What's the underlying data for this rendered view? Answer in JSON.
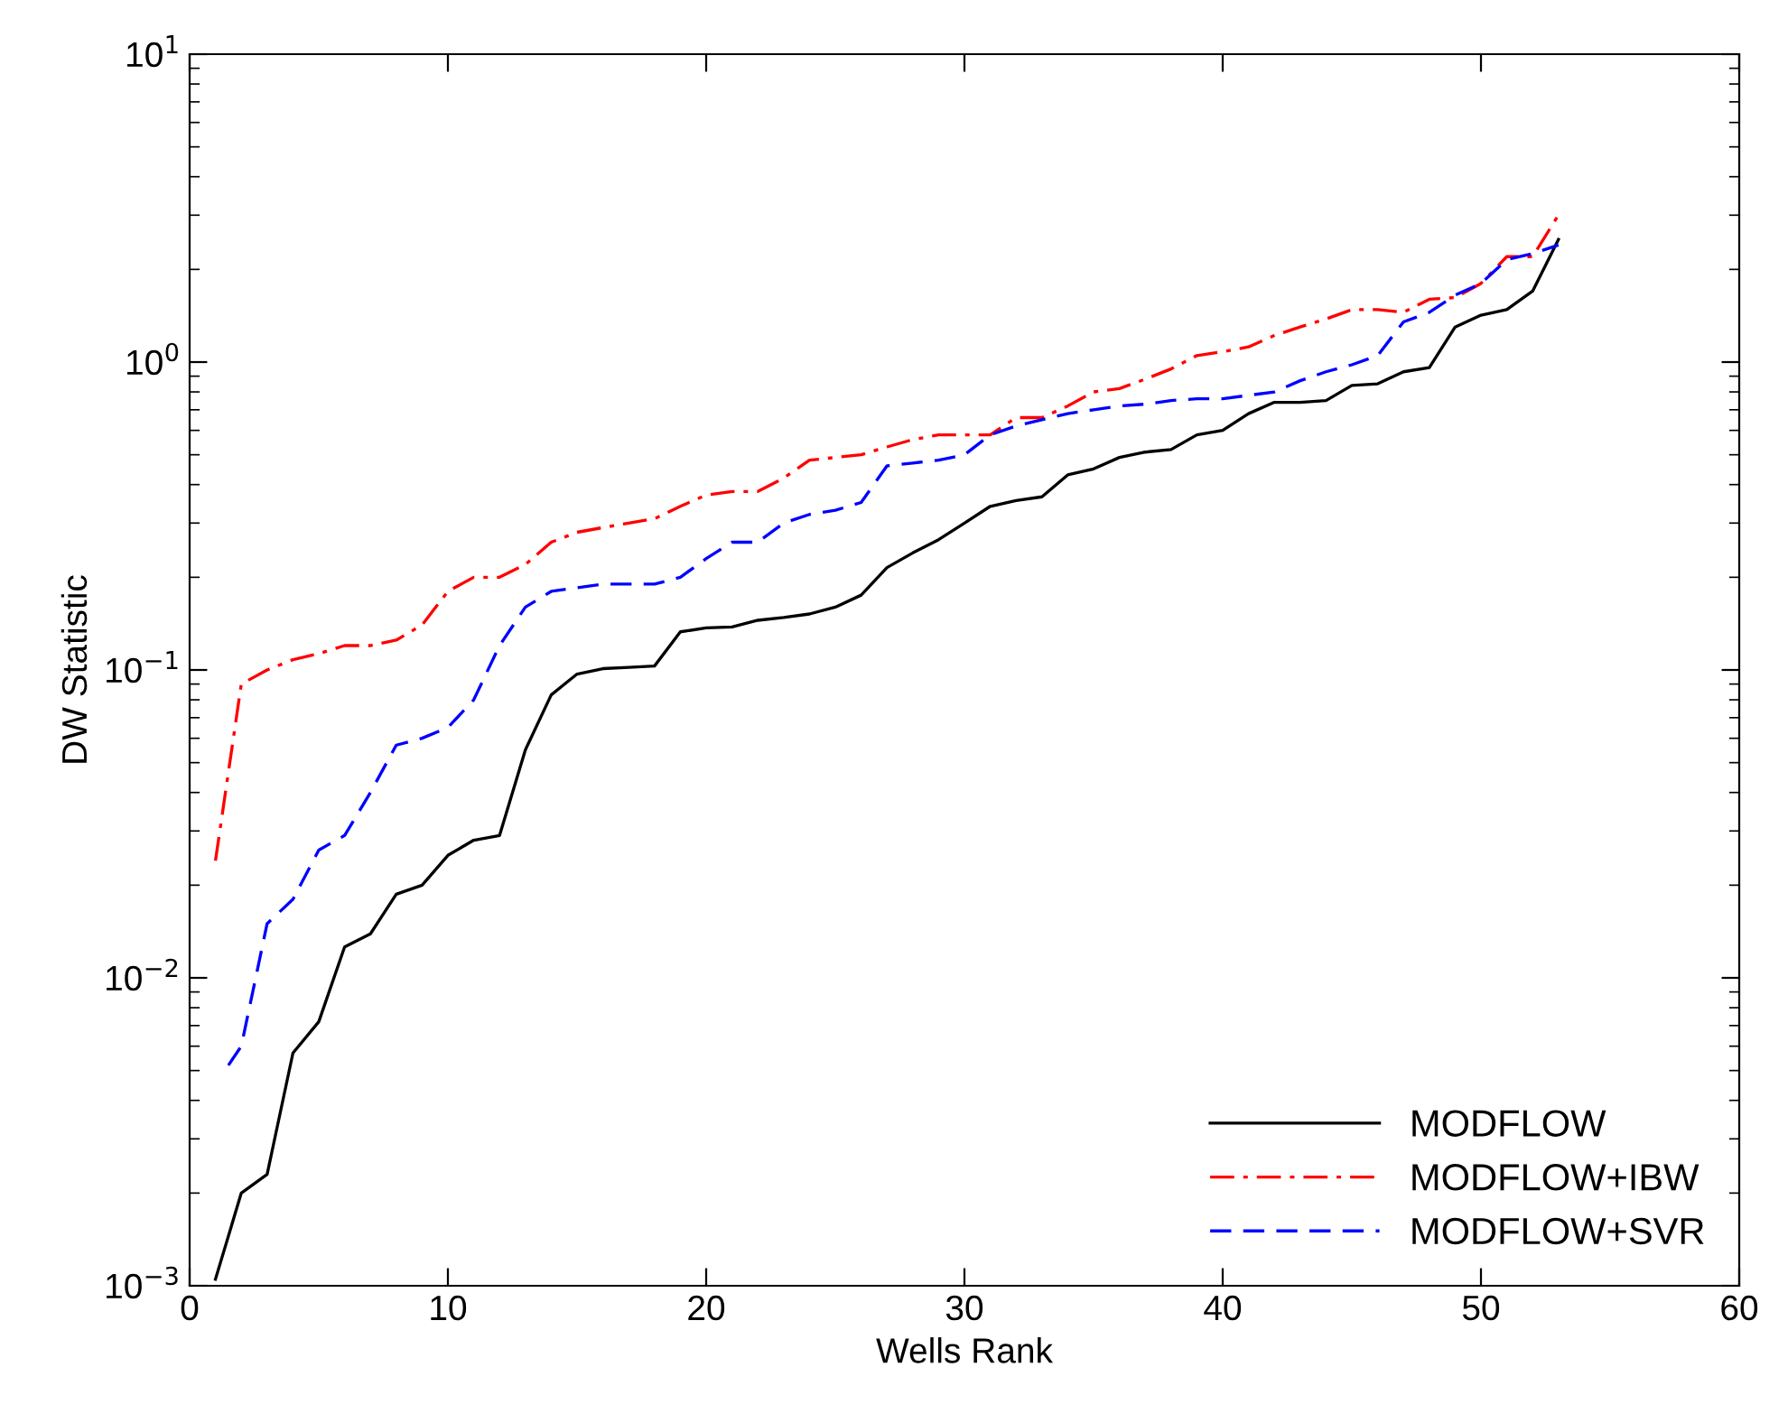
{
  "chart_data": {
    "type": "line",
    "xlabel": "Wells Rank",
    "ylabel": "DW Statistic",
    "log": "y",
    "xlim": [
      0,
      60
    ],
    "xticks": [
      0,
      10,
      20,
      30,
      40,
      50,
      60
    ],
    "ylim": [
      0.001,
      10
    ],
    "yticks": [
      {
        "value": 0.001,
        "label": "10$^{−3}$"
      },
      {
        "value": 0.01,
        "label": "10$^{−2}$"
      },
      {
        "value": 0.1,
        "label": "10$^{−1}$"
      },
      {
        "value": 1,
        "label": "10$^{0}$"
      },
      {
        "value": 10,
        "label": "10$^{1}$"
      }
    ],
    "grid": false,
    "legend": "bottom right",
    "x": [
      1,
      2,
      3,
      4,
      5,
      6,
      7,
      8,
      9,
      10,
      11,
      12,
      13,
      14,
      15,
      16,
      17,
      18,
      19,
      20,
      21,
      22,
      23,
      24,
      25,
      26,
      27,
      28,
      29,
      30,
      31,
      32,
      33,
      34,
      35,
      36,
      37,
      38,
      39,
      40,
      41,
      42,
      43,
      44,
      45,
      46,
      47,
      48,
      49,
      50,
      51,
      52,
      53
    ],
    "series": [
      {
        "name": "MODFLOW",
        "color": "#000000",
        "line_style": "solid",
        "values": [
          0.00105,
          0.002,
          0.0023,
          0.0057,
          0.0072,
          0.0126,
          0.0139,
          0.0187,
          0.02,
          0.025,
          0.028,
          0.029,
          0.055,
          0.083,
          0.097,
          0.101,
          0.102,
          0.103,
          0.133,
          0.137,
          0.138,
          0.145,
          0.148,
          0.152,
          0.16,
          0.175,
          0.215,
          0.24,
          0.265,
          0.3,
          0.34,
          0.355,
          0.365,
          0.43,
          0.45,
          0.49,
          0.51,
          0.52,
          0.58,
          0.6,
          0.68,
          0.74,
          0.74,
          0.75,
          0.84,
          0.85,
          0.93,
          0.96,
          1.3,
          1.42,
          1.48,
          1.7,
          2.5
        ]
      },
      {
        "name": "MODFLOW+IBW",
        "color": "#ff0000",
        "line_style": "dashdot",
        "values": [
          0.024,
          0.09,
          0.1,
          0.108,
          0.113,
          0.12,
          0.12,
          0.125,
          0.14,
          0.18,
          0.2,
          0.2,
          0.22,
          0.26,
          0.28,
          0.29,
          0.3,
          0.31,
          0.34,
          0.37,
          0.38,
          0.38,
          0.42,
          0.48,
          0.49,
          0.5,
          0.53,
          0.56,
          0.58,
          0.58,
          0.58,
          0.66,
          0.66,
          0.72,
          0.8,
          0.82,
          0.88,
          0.95,
          1.05,
          1.08,
          1.12,
          1.22,
          1.3,
          1.38,
          1.48,
          1.48,
          1.45,
          1.6,
          1.62,
          1.8,
          2.2,
          2.2,
          3.0
        ]
      },
      {
        "name": "MODFLOW+SVR",
        "color": "#0000ff",
        "line_style": "dashed",
        "x": [
          1.5,
          2,
          3,
          4,
          5,
          6,
          7,
          8,
          9,
          10,
          11,
          12,
          13,
          14,
          15,
          16,
          17,
          18,
          19,
          20,
          21,
          22,
          23,
          24,
          25,
          26,
          27,
          28,
          29,
          30,
          31,
          32,
          33,
          34,
          35,
          36,
          37,
          38,
          39,
          40,
          41,
          42,
          43,
          44,
          45,
          46,
          47,
          48,
          49,
          50,
          51,
          52,
          53
        ],
        "values": [
          0.0052,
          0.006,
          0.015,
          0.018,
          0.026,
          0.029,
          0.04,
          0.057,
          0.06,
          0.065,
          0.08,
          0.12,
          0.16,
          0.18,
          0.185,
          0.19,
          0.19,
          0.19,
          0.2,
          0.23,
          0.26,
          0.26,
          0.3,
          0.32,
          0.33,
          0.35,
          0.46,
          0.47,
          0.48,
          0.5,
          0.58,
          0.62,
          0.65,
          0.68,
          0.7,
          0.72,
          0.73,
          0.75,
          0.76,
          0.76,
          0.78,
          0.8,
          0.87,
          0.93,
          0.98,
          1.05,
          1.35,
          1.45,
          1.65,
          1.8,
          2.15,
          2.25,
          2.4
        ]
      }
    ]
  }
}
